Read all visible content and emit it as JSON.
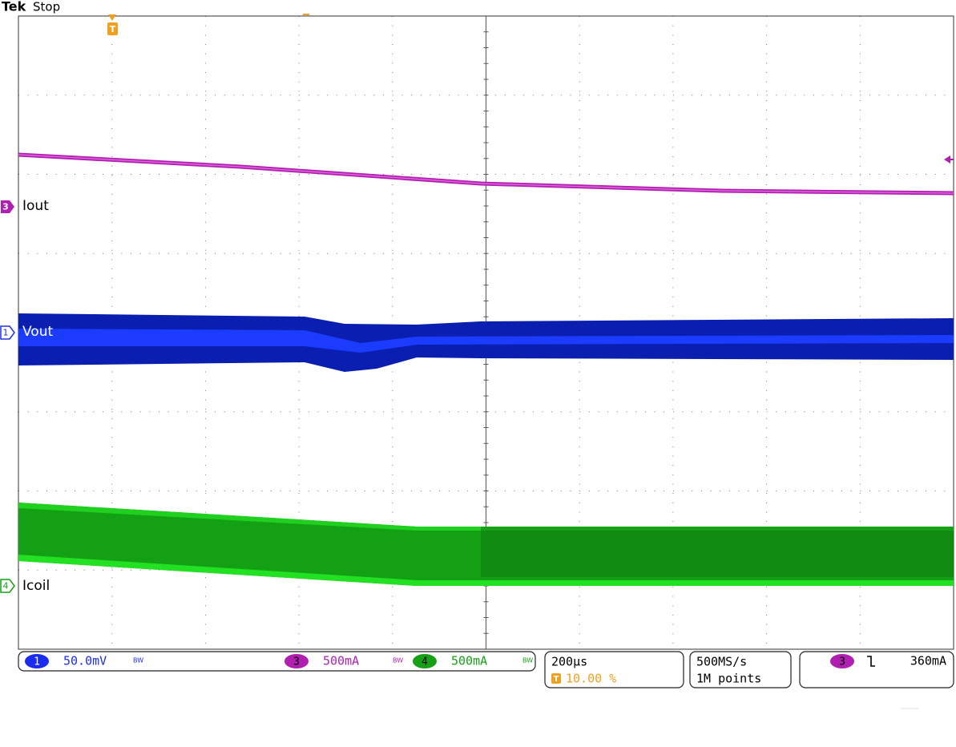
{
  "header": {
    "brand": "Tek",
    "status": "Stop",
    "trigger_marker": "T"
  },
  "channels": [
    {
      "number": "3",
      "label": "Iout"
    },
    {
      "number": "1",
      "label": "Vout"
    },
    {
      "number": "4",
      "label": "Icoil"
    }
  ],
  "readouts": {
    "ch1": {
      "number": "1",
      "scale": "50.0mV",
      "bw": "BW"
    },
    "ch3": {
      "number": "3",
      "scale": "500mA",
      "bw": "BW"
    },
    "ch4": {
      "number": "4",
      "scale": "500mA",
      "bw": "BW"
    },
    "timebase": {
      "scale": "200µs",
      "trigger_icon": "T",
      "position": "10.00 %"
    },
    "acquisition": {
      "rate": "500MS/s",
      "length": "1M points"
    },
    "trigger": {
      "source": "3",
      "level": "360mA"
    }
  }
}
